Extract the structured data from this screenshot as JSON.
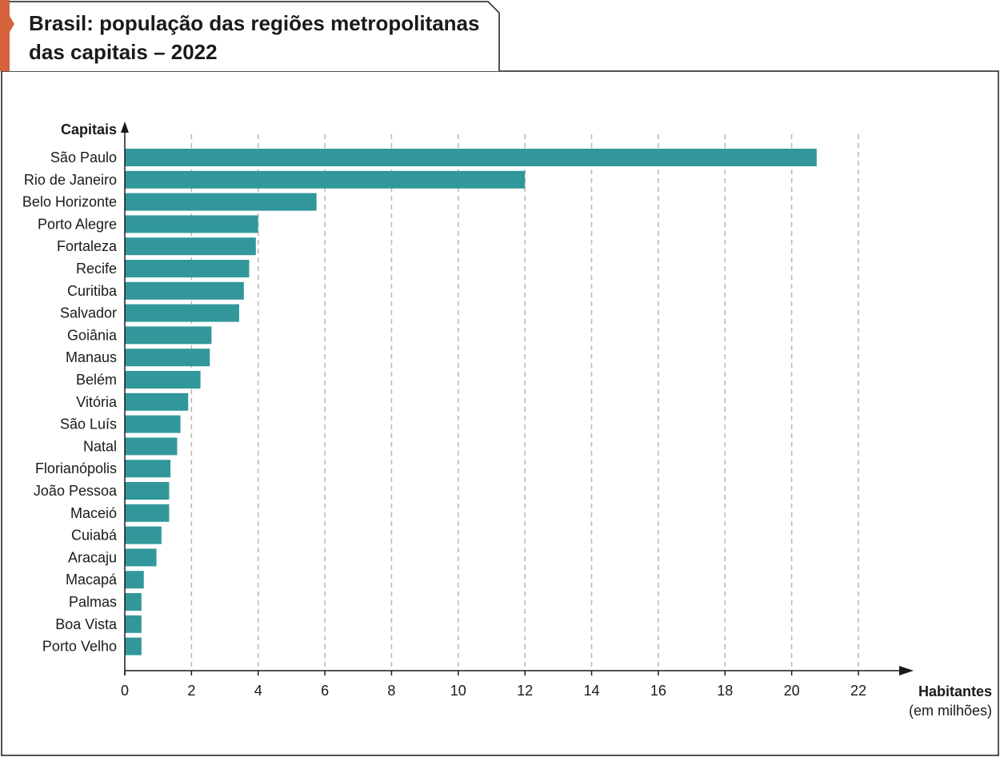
{
  "chart_data": {
    "type": "bar",
    "orientation": "horizontal",
    "title_lines": [
      "Brasil: população das regiões metropolitanas",
      "das capitais – 2022"
    ],
    "ylabel": "Capitais",
    "xlabel": "Habitantes",
    "xlabel_unit": "(em milhões)",
    "xlim": [
      0,
      22
    ],
    "xticks": [
      0,
      2,
      4,
      6,
      8,
      10,
      12,
      14,
      16,
      18,
      20,
      22
    ],
    "grid": "vertical-dashed",
    "bar_color": "#31979a",
    "accent_color": "#d4623a",
    "categories": [
      "São Paulo",
      "Rio de Janeiro",
      "Belo Horizonte",
      "Porto Alegre",
      "Fortaleza",
      "Recife",
      "Curitiba",
      "Salvador",
      "Goiânia",
      "Manaus",
      "Belém",
      "Vitória",
      "São Luís",
      "Natal",
      "Florianópolis",
      "João Pessoa",
      "Maceió",
      "Cuiabá",
      "Aracaju",
      "Macapá",
      "Palmas",
      "Boa Vista",
      "Porto Velho"
    ],
    "values": [
      20.75,
      12.0,
      5.75,
      4.0,
      3.93,
      3.73,
      3.57,
      3.43,
      2.6,
      2.55,
      2.27,
      1.9,
      1.67,
      1.57,
      1.37,
      1.33,
      1.33,
      1.1,
      0.95,
      0.57,
      0.5,
      0.5,
      0.5
    ]
  }
}
